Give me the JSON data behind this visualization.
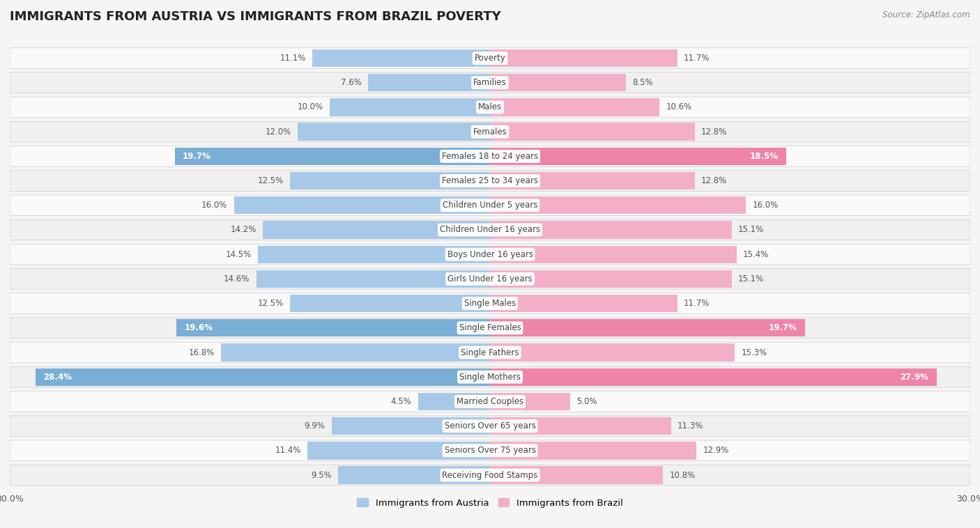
{
  "title": "IMMIGRANTS FROM AUSTRIA VS IMMIGRANTS FROM BRAZIL POVERTY",
  "source": "Source: ZipAtlas.com",
  "categories": [
    "Poverty",
    "Families",
    "Males",
    "Females",
    "Females 18 to 24 years",
    "Females 25 to 34 years",
    "Children Under 5 years",
    "Children Under 16 years",
    "Boys Under 16 years",
    "Girls Under 16 years",
    "Single Males",
    "Single Females",
    "Single Fathers",
    "Single Mothers",
    "Married Couples",
    "Seniors Over 65 years",
    "Seniors Over 75 years",
    "Receiving Food Stamps"
  ],
  "austria_values": [
    11.1,
    7.6,
    10.0,
    12.0,
    19.7,
    12.5,
    16.0,
    14.2,
    14.5,
    14.6,
    12.5,
    19.6,
    16.8,
    28.4,
    4.5,
    9.9,
    11.4,
    9.5
  ],
  "brazil_values": [
    11.7,
    8.5,
    10.6,
    12.8,
    18.5,
    12.8,
    16.0,
    15.1,
    15.4,
    15.1,
    11.7,
    19.7,
    15.3,
    27.9,
    5.0,
    11.3,
    12.9,
    10.8
  ],
  "austria_color": "#a8c8e8",
  "brazil_color": "#f4afc8",
  "austria_highlight_color": "#7aaed4",
  "brazil_highlight_color": "#ee85a8",
  "highlight_rows": [
    4,
    11,
    13
  ],
  "austria_label": "Immigrants from Austria",
  "brazil_label": "Immigrants from Brazil",
  "xlim": 30.0,
  "row_color_even": "#f0f0f0",
  "row_color_odd": "#fafafa",
  "title_fontsize": 13,
  "label_fontsize": 8.5,
  "value_fontsize": 8.5
}
